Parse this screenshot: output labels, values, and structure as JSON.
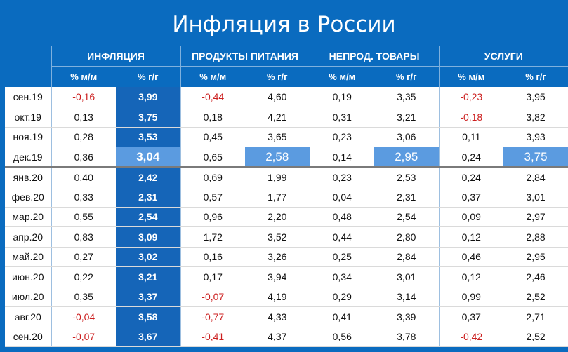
{
  "title": "Инфляция в России",
  "groups": [
    "ИНФЛЯЦИЯ",
    "ПРОДУКТЫ ПИТАНИЯ",
    "НЕПРОД. ТОВАРЫ",
    "УСЛУГИ"
  ],
  "subheaders": [
    "% м/м",
    "% г/г"
  ],
  "rows": [
    {
      "month": "сен.19",
      "v": [
        "-0,16",
        "3,99",
        "-0,44",
        "4,60",
        "0,19",
        "3,35",
        "-0,23",
        "3,95"
      ]
    },
    {
      "month": "окт.19",
      "v": [
        "0,13",
        "3,75",
        "0,18",
        "4,21",
        "0,31",
        "3,21",
        "-0,18",
        "3,82"
      ]
    },
    {
      "month": "ноя.19",
      "v": [
        "0,28",
        "3,53",
        "0,45",
        "3,65",
        "0,23",
        "3,06",
        "0,11",
        "3,93"
      ]
    },
    {
      "month": "дек.19",
      "v": [
        "0,36",
        "3,04",
        "0,65",
        "2,58",
        "0,14",
        "2,95",
        "0,24",
        "3,75"
      ]
    },
    {
      "month": "янв.20",
      "v": [
        "0,40",
        "2,42",
        "0,69",
        "1,99",
        "0,23",
        "2,53",
        "0,24",
        "2,84"
      ]
    },
    {
      "month": "фев.20",
      "v": [
        "0,33",
        "2,31",
        "0,57",
        "1,77",
        "0,04",
        "2,31",
        "0,37",
        "3,01"
      ]
    },
    {
      "month": "мар.20",
      "v": [
        "0,55",
        "2,54",
        "0,96",
        "2,20",
        "0,48",
        "2,54",
        "0,09",
        "2,97"
      ]
    },
    {
      "month": "апр.20",
      "v": [
        "0,83",
        "3,09",
        "1,72",
        "3,52",
        "0,44",
        "2,80",
        "0,12",
        "2,88"
      ]
    },
    {
      "month": "май.20",
      "v": [
        "0,27",
        "3,02",
        "0,16",
        "3,26",
        "0,25",
        "2,84",
        "0,46",
        "2,95"
      ]
    },
    {
      "month": "июн.20",
      "v": [
        "0,22",
        "3,21",
        "0,17",
        "3,94",
        "0,34",
        "3,01",
        "0,12",
        "2,46"
      ]
    },
    {
      "month": "июл.20",
      "v": [
        "0,35",
        "3,37",
        "-0,07",
        "4,19",
        "0,29",
        "3,14",
        "0,99",
        "2,52"
      ]
    },
    {
      "month": "авг.20",
      "v": [
        "-0,04",
        "3,58",
        "-0,77",
        "4,33",
        "0,41",
        "3,39",
        "0,37",
        "2,71"
      ]
    },
    {
      "month": "сен.20",
      "v": [
        "-0,07",
        "3,67",
        "-0,41",
        "4,37",
        "0,56",
        "3,78",
        "-0,42",
        "2,52"
      ]
    }
  ],
  "highlight_row": "дек.19",
  "colors": {
    "header_bg": "#0a6bbf",
    "inflation_col": "#1565b8",
    "highlight": "#5b9be0",
    "negative": "#cc1f1f"
  },
  "chart_data": {
    "type": "table",
    "title": "Инфляция в России",
    "columns": [
      "ИНФЛЯЦИЯ % м/м",
      "ИНФЛЯЦИЯ % г/г",
      "ПРОДУКТЫ ПИТАНИЯ % м/м",
      "ПРОДУКТЫ ПИТАНИЯ % г/г",
      "НЕПРОД. ТОВАРЫ % м/м",
      "НЕПРОД. ТОВАРЫ % г/г",
      "УСЛУГИ % м/м",
      "УСЛУГИ % г/г"
    ],
    "categories": [
      "сен.19",
      "окт.19",
      "ноя.19",
      "дек.19",
      "янв.20",
      "фев.20",
      "мар.20",
      "апр.20",
      "май.20",
      "июн.20",
      "июл.20",
      "авг.20",
      "сен.20"
    ]
  }
}
